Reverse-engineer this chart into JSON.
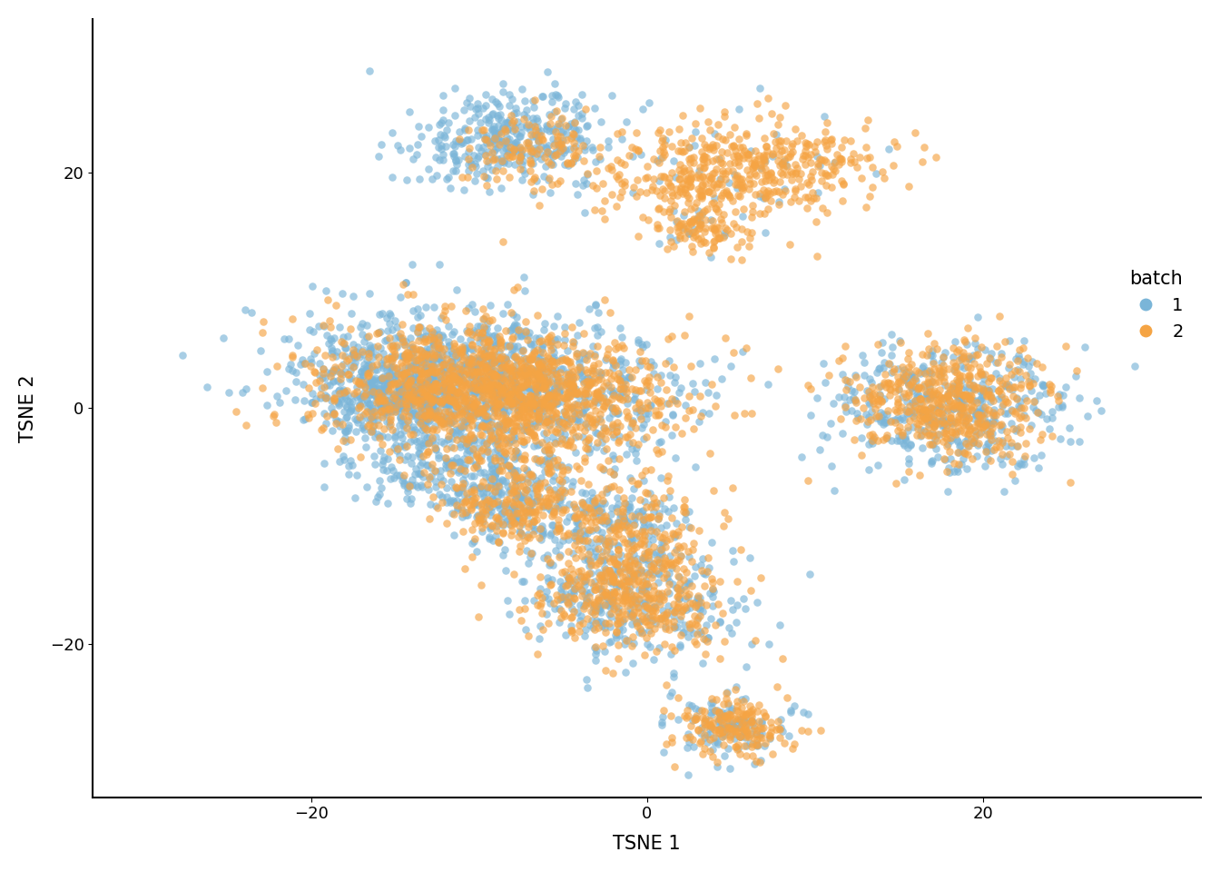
{
  "color_batch1": "#7ab5d8",
  "color_batch2": "#f5a444",
  "alpha": 0.65,
  "point_size": 38,
  "xlabel": "TSNE 1",
  "ylabel": "TSNE 2",
  "legend_title": "batch",
  "legend_labels": [
    "1",
    "2"
  ],
  "xlim": [
    -33,
    33
  ],
  "ylim": [
    -33,
    33
  ],
  "xticks": [
    -20,
    0,
    20
  ],
  "yticks": [
    -20,
    0,
    20
  ],
  "background_color": "#ffffff",
  "seed": 42
}
